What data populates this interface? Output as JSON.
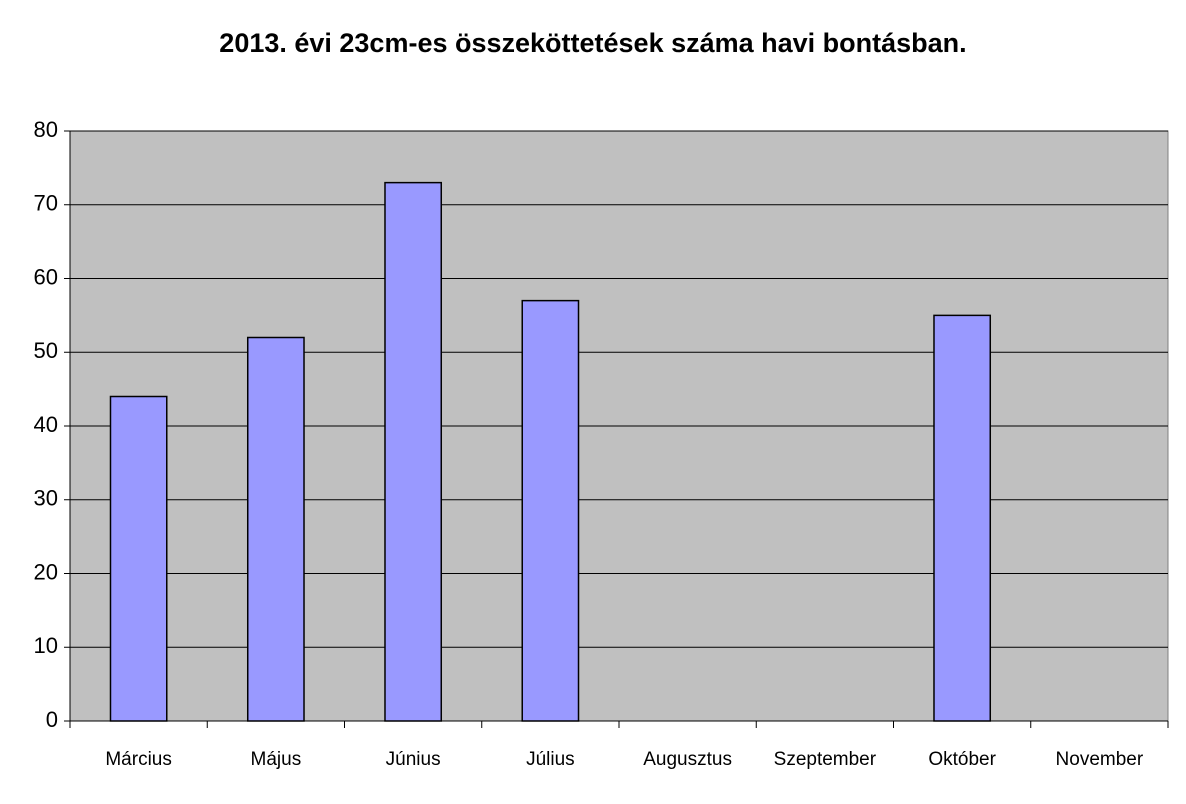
{
  "chart_data": {
    "type": "bar",
    "title": "2013. évi 23cm-es összeköttetések száma havi bontásban.",
    "categories": [
      "Március",
      "Május",
      "Június",
      "Július",
      "Augusztus",
      "Szeptember",
      "Október",
      "November"
    ],
    "values": [
      44,
      52,
      73,
      57,
      null,
      null,
      55,
      null
    ],
    "color": "#9999ff",
    "plot_background": "#c0c0c0",
    "ylim": [
      0,
      80
    ],
    "yticks": [
      0,
      10,
      20,
      30,
      40,
      50,
      60,
      70,
      80
    ],
    "grid": true
  }
}
